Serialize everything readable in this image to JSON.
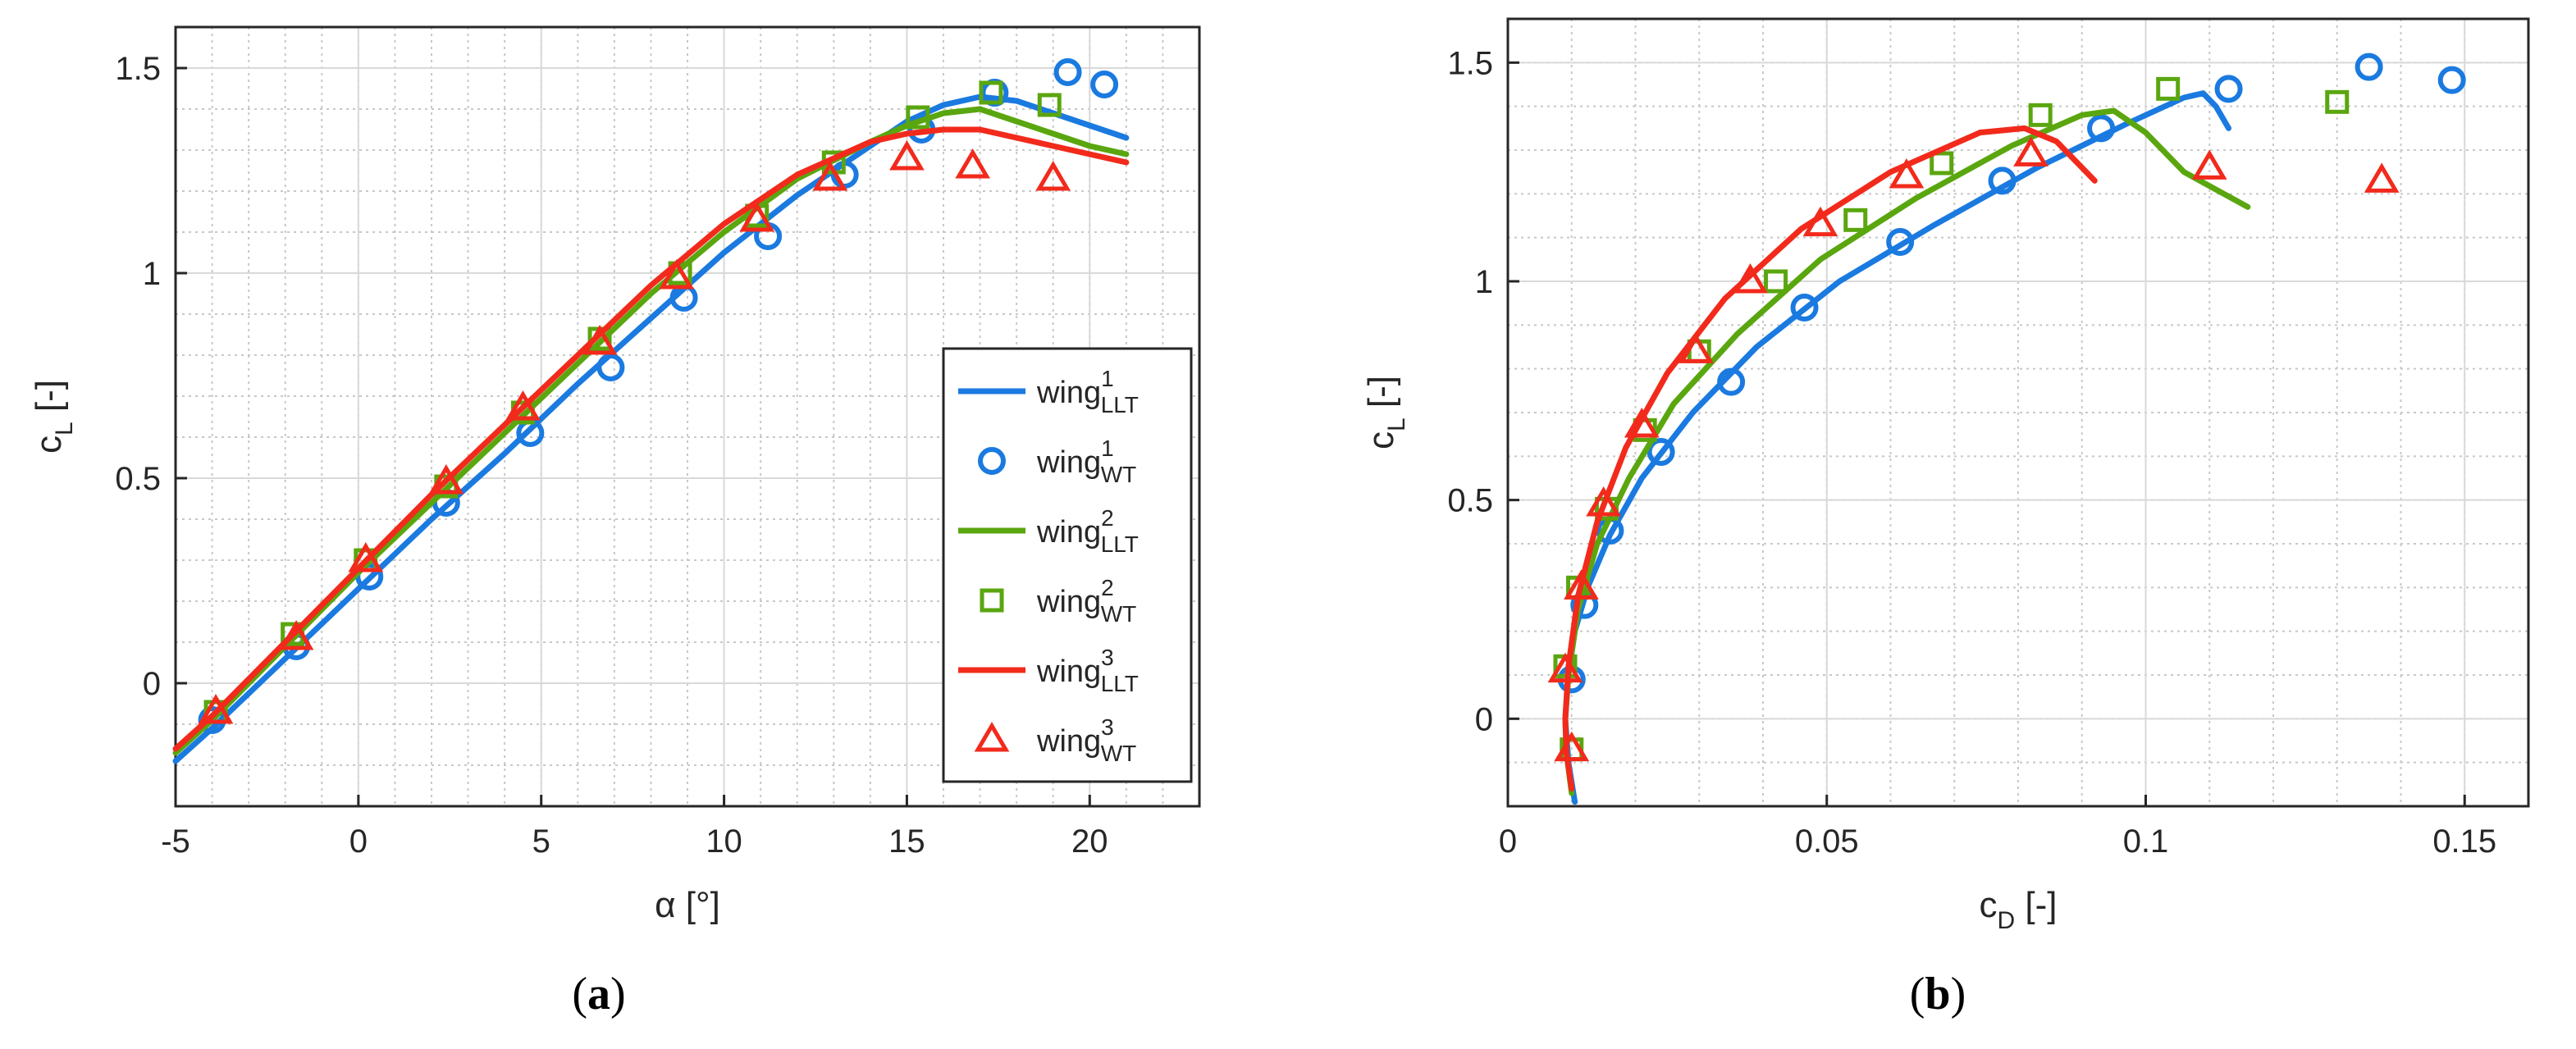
{
  "colors": {
    "wing1": "#1a7ae0",
    "wing2": "#5aa60f",
    "wing3": "#f22a1c",
    "axis": "#262626",
    "grid": "#d9d9d9",
    "minor_grid": "#c8c8c8"
  },
  "chart_data": [
    {
      "type": "line",
      "panel_label": "a",
      "xlabel": "α [°]",
      "ylabel": "c",
      "ylabel_sub": "L",
      "ylabel_unit": " [-]",
      "xlim": [
        -5,
        23
      ],
      "ylim": [
        -0.3,
        1.6
      ],
      "xticks": [
        -5,
        0,
        5,
        10,
        15,
        20
      ],
      "xtick_labels": [
        "-5",
        "0",
        "5",
        "10",
        "15",
        "20"
      ],
      "yticks": [
        0,
        0.5,
        1,
        1.5
      ],
      "ytick_labels": [
        "0",
        "0.5",
        "1",
        "1.5"
      ],
      "grid": true,
      "legend_position": "right",
      "series": [
        {
          "name": "wing",
          "sup": "1",
          "sub": "LLT",
          "kind": "line",
          "color_key": "wing1",
          "x": [
            -5,
            -4,
            -2,
            0,
            2,
            4,
            6,
            8,
            10,
            12,
            14,
            15,
            16,
            17,
            18,
            19,
            20,
            21
          ],
          "y": [
            -0.19,
            -0.11,
            0.06,
            0.23,
            0.4,
            0.56,
            0.73,
            0.89,
            1.05,
            1.19,
            1.31,
            1.37,
            1.41,
            1.43,
            1.42,
            1.39,
            1.36,
            1.33
          ]
        },
        {
          "name": "wing",
          "sup": "1",
          "sub": "WT",
          "kind": "marker",
          "marker": "circle",
          "color_key": "wing1",
          "x": [
            -4,
            -1.7,
            0.3,
            2.4,
            4.7,
            6.9,
            8.9,
            11.2,
            13.3,
            15.4,
            17.4,
            19.4,
            20.4
          ],
          "y": [
            -0.09,
            0.09,
            0.26,
            0.44,
            0.61,
            0.77,
            0.94,
            1.09,
            1.24,
            1.35,
            1.44,
            1.49,
            1.46
          ]
        },
        {
          "name": "wing",
          "sup": "2",
          "sub": "LLT",
          "kind": "line",
          "color_key": "wing2",
          "x": [
            -5,
            -4,
            -2,
            0,
            2,
            4,
            6,
            8,
            10,
            12,
            14,
            15,
            16,
            17,
            18,
            19,
            20,
            21
          ],
          "y": [
            -0.17,
            -0.09,
            0.09,
            0.27,
            0.44,
            0.61,
            0.78,
            0.95,
            1.1,
            1.23,
            1.32,
            1.36,
            1.39,
            1.4,
            1.37,
            1.34,
            1.31,
            1.29
          ]
        },
        {
          "name": "wing",
          "sup": "2",
          "sub": "WT",
          "kind": "marker",
          "marker": "square",
          "color_key": "wing2",
          "x": [
            -3.9,
            -1.8,
            0.2,
            2.4,
            4.5,
            6.6,
            8.8,
            10.9,
            13.0,
            15.3,
            17.3,
            18.9
          ],
          "y": [
            -0.07,
            0.12,
            0.3,
            0.48,
            0.66,
            0.84,
            1.0,
            1.14,
            1.27,
            1.38,
            1.44,
            1.41
          ]
        },
        {
          "name": "wing",
          "sup": "3",
          "sub": "LLT",
          "kind": "line",
          "color_key": "wing3",
          "x": [
            -5,
            -4,
            -2,
            0,
            2,
            4,
            6,
            8,
            10,
            12,
            14,
            15,
            16,
            17,
            18,
            19,
            20,
            21
          ],
          "y": [
            -0.16,
            -0.08,
            0.1,
            0.28,
            0.46,
            0.63,
            0.8,
            0.97,
            1.12,
            1.24,
            1.32,
            1.34,
            1.35,
            1.35,
            1.33,
            1.31,
            1.29,
            1.27
          ]
        },
        {
          "name": "wing",
          "sup": "3",
          "sub": "WT",
          "kind": "marker",
          "marker": "triangle",
          "color_key": "wing3",
          "x": [
            -3.9,
            -1.7,
            0.2,
            2.4,
            4.5,
            6.6,
            8.7,
            10.9,
            12.9,
            15.0,
            16.8,
            19.0
          ],
          "y": [
            -0.07,
            0.11,
            0.3,
            0.49,
            0.67,
            0.83,
            0.99,
            1.13,
            1.23,
            1.28,
            1.26,
            1.23
          ]
        }
      ]
    },
    {
      "type": "line",
      "panel_label": "b",
      "xlabel": "c",
      "xlabel_sub": "D",
      "xlabel_unit": " [-]",
      "ylabel": "c",
      "ylabel_sub": "L",
      "ylabel_unit": " [-]",
      "xlim": [
        0,
        0.16
      ],
      "ylim": [
        -0.2,
        1.6
      ],
      "xticks": [
        0,
        0.05,
        0.1,
        0.15
      ],
      "xtick_labels": [
        "0",
        "0.05",
        "0.1",
        "0.15"
      ],
      "yticks": [
        0,
        0.5,
        1,
        1.5
      ],
      "ytick_labels": [
        "0",
        "0.5",
        "1",
        "1.5"
      ],
      "grid": true,
      "series": [
        {
          "name": "wing",
          "sup": "1",
          "sub": "LLT",
          "kind": "line",
          "color_key": "wing1",
          "x": [
            0.0105,
            0.0095,
            0.009,
            0.0095,
            0.0105,
            0.0125,
            0.016,
            0.021,
            0.029,
            0.039,
            0.052,
            0.067,
            0.083,
            0.097,
            0.106,
            0.109,
            0.111,
            0.113
          ],
          "y": [
            -0.19,
            -0.1,
            0.0,
            0.1,
            0.2,
            0.3,
            0.42,
            0.55,
            0.7,
            0.85,
            1.0,
            1.13,
            1.26,
            1.36,
            1.42,
            1.43,
            1.4,
            1.35
          ]
        },
        {
          "name": "wing",
          "sup": "1",
          "sub": "WT",
          "kind": "marker",
          "marker": "circle",
          "color_key": "wing1",
          "x": [
            0.01,
            0.012,
            0.016,
            0.024,
            0.035,
            0.0465,
            0.0615,
            0.0775,
            0.093,
            0.113,
            0.135,
            0.148
          ],
          "y": [
            0.09,
            0.26,
            0.43,
            0.61,
            0.77,
            0.94,
            1.09,
            1.23,
            1.35,
            1.44,
            1.49,
            1.46
          ]
        },
        {
          "name": "wing",
          "sup": "2",
          "sub": "LLT",
          "kind": "line",
          "color_key": "wing2",
          "x": [
            0.01,
            0.0092,
            0.009,
            0.0095,
            0.011,
            0.014,
            0.019,
            0.026,
            0.036,
            0.049,
            0.064,
            0.079,
            0.09,
            0.095,
            0.1,
            0.106,
            0.116
          ],
          "y": [
            -0.17,
            -0.08,
            0.0,
            0.1,
            0.25,
            0.4,
            0.55,
            0.72,
            0.88,
            1.05,
            1.19,
            1.31,
            1.38,
            1.39,
            1.34,
            1.25,
            1.17
          ]
        },
        {
          "name": "wing",
          "sup": "2",
          "sub": "WT",
          "kind": "marker",
          "marker": "square",
          "color_key": "wing2",
          "x": [
            0.01,
            0.009,
            0.011,
            0.0155,
            0.0215,
            0.03,
            0.042,
            0.0545,
            0.068,
            0.0835,
            0.1035,
            0.13
          ],
          "y": [
            -0.07,
            0.12,
            0.3,
            0.48,
            0.66,
            0.84,
            1.0,
            1.14,
            1.27,
            1.38,
            1.44,
            1.41
          ]
        },
        {
          "name": "wing",
          "sup": "3",
          "sub": "LLT",
          "kind": "line",
          "color_key": "wing3",
          "x": [
            0.01,
            0.0092,
            0.009,
            0.0095,
            0.011,
            0.014,
            0.0185,
            0.025,
            0.034,
            0.046,
            0.06,
            0.074,
            0.081,
            0.086,
            0.09,
            0.092
          ],
          "y": [
            -0.16,
            -0.08,
            0.0,
            0.12,
            0.28,
            0.45,
            0.62,
            0.79,
            0.96,
            1.12,
            1.25,
            1.34,
            1.35,
            1.32,
            1.26,
            1.23
          ]
        },
        {
          "name": "wing",
          "sup": "3",
          "sub": "WT",
          "kind": "marker",
          "marker": "triangle",
          "color_key": "wing3",
          "x": [
            0.01,
            0.009,
            0.0115,
            0.015,
            0.021,
            0.0295,
            0.038,
            0.049,
            0.0625,
            0.082,
            0.11,
            0.137
          ],
          "y": [
            -0.07,
            0.11,
            0.3,
            0.49,
            0.67,
            0.84,
            1.0,
            1.13,
            1.24,
            1.29,
            1.26,
            1.23
          ]
        }
      ]
    }
  ]
}
